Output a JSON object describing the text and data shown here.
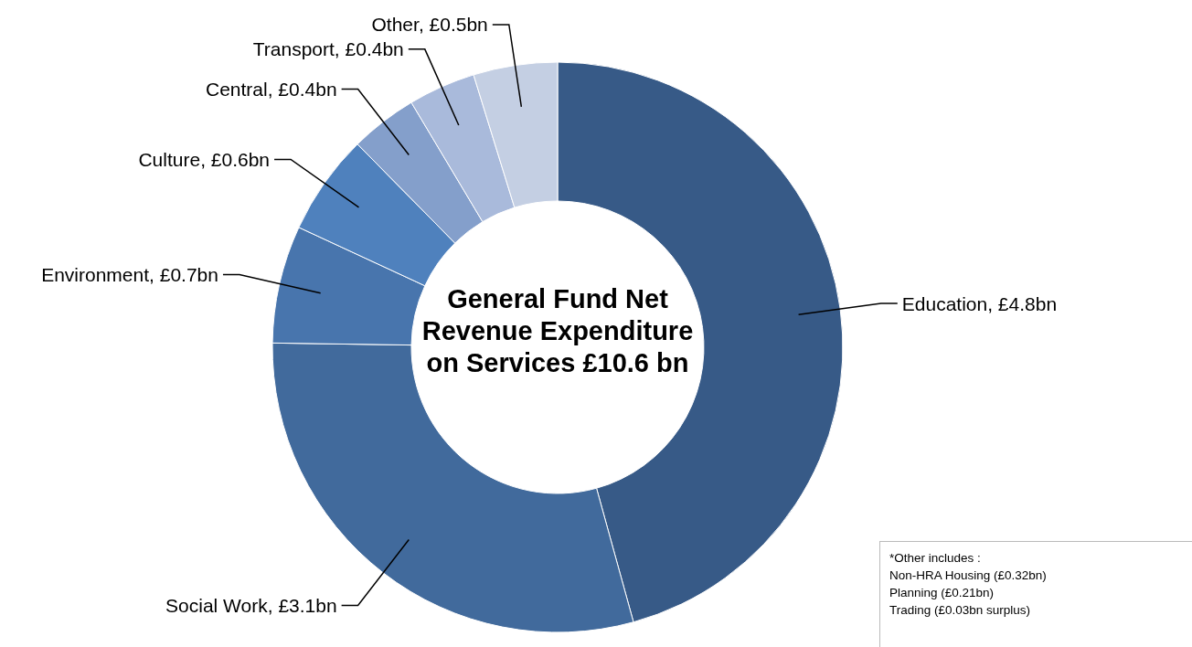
{
  "chart_data": {
    "type": "donut",
    "title": "General Fund Net Revenue Expenditure on Services £10.6 bn",
    "categories": [
      "Education",
      "Social Work",
      "Environment",
      "Culture",
      "Central",
      "Transport",
      "Other"
    ],
    "values": [
      4.8,
      3.1,
      0.7,
      0.6,
      0.4,
      0.4,
      0.5
    ],
    "value_labels": [
      "£4.8bn",
      "£3.1bn",
      "£0.7bn",
      "£0.6bn",
      "£0.4bn",
      "£0.4bn",
      "£0.5bn"
    ],
    "colors": [
      "#375a87",
      "#416a9c",
      "#4875ad",
      "#4f81bd",
      "#849fcb",
      "#a9badb",
      "#c4cfe3"
    ],
    "annotations": [
      "*Other includes :",
      "Non-HRA Housing (£0.32bn)",
      "Planning (£0.21bn)",
      "Trading (£0.03bn surplus)"
    ],
    "legend": false
  }
}
